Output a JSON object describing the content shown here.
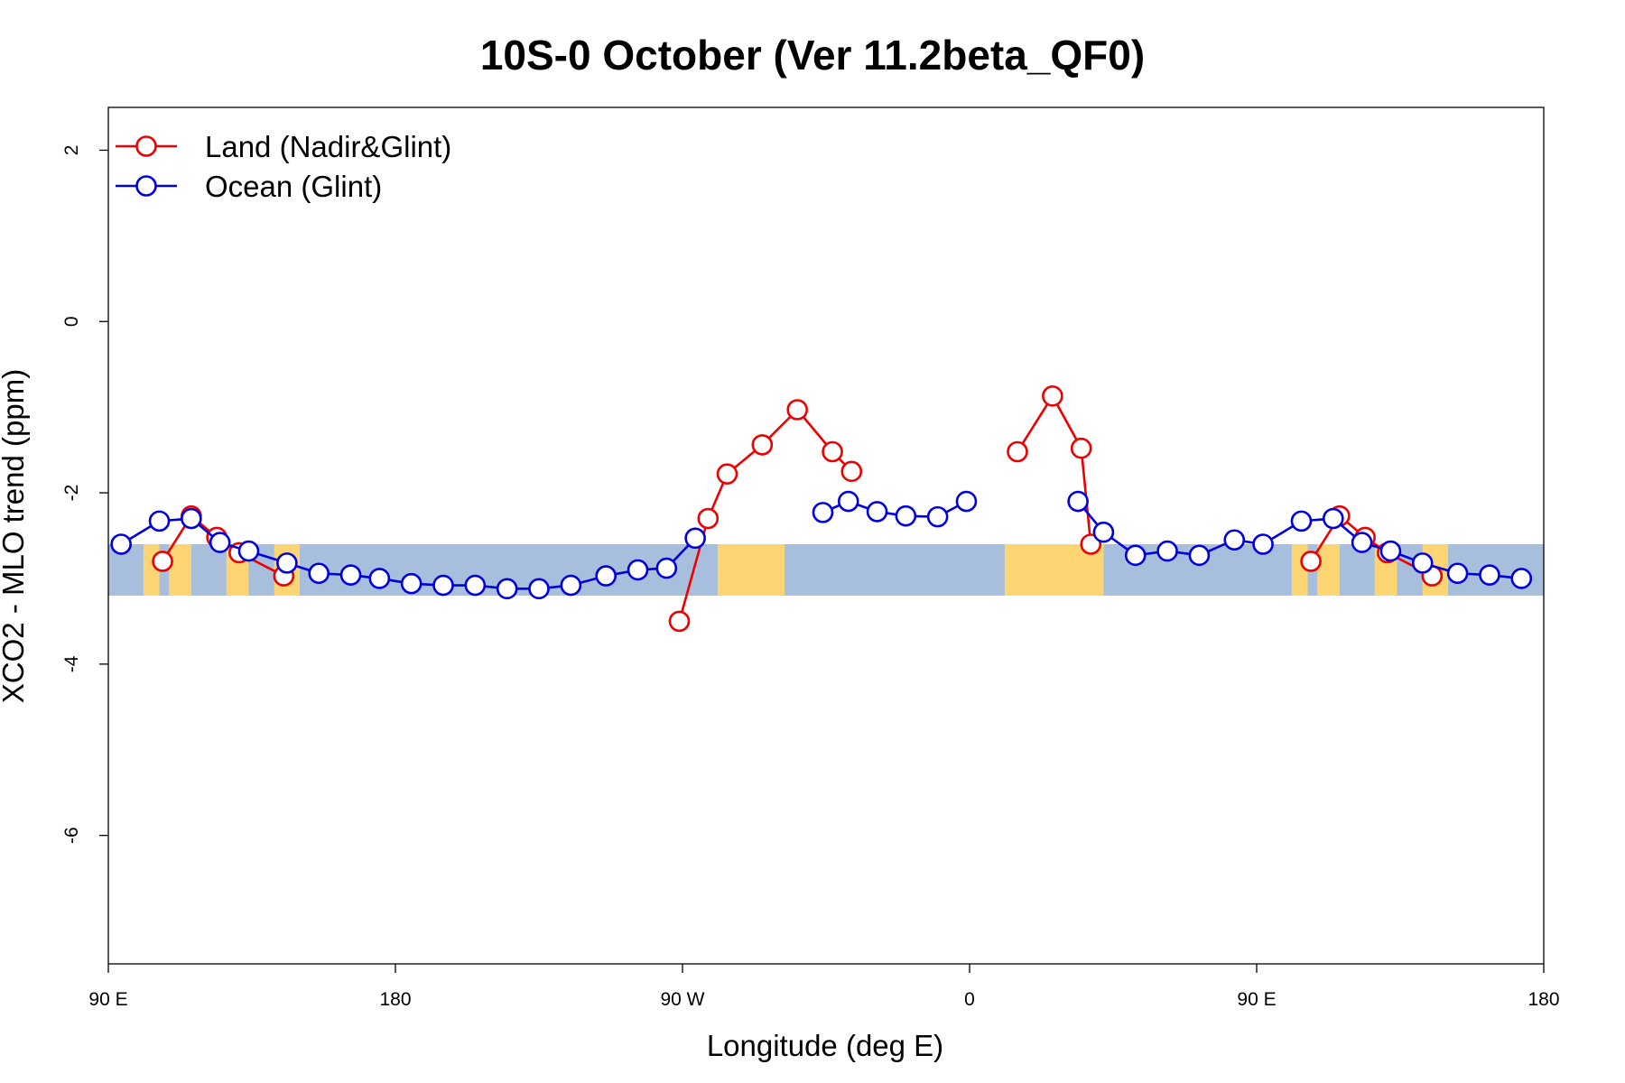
{
  "chart_data": {
    "type": "line",
    "title": "10S-0 October (Ver 11.2beta_QF0)",
    "xlabel": "Longitude (deg E)",
    "ylabel": "XCO2 - MLO trend (ppm)",
    "xlim": [
      90,
      540
    ],
    "ylim": [
      -7.5,
      2.5
    ],
    "x_ticks": [
      {
        "value": 90,
        "label": "90 E"
      },
      {
        "value": 180,
        "label": "180"
      },
      {
        "value": 270,
        "label": "90 W"
      },
      {
        "value": 360,
        "label": "0"
      },
      {
        "value": 450,
        "label": "90 E"
      },
      {
        "value": 540,
        "label": "180"
      }
    ],
    "y_ticks": [
      {
        "value": 2,
        "label": "2"
      },
      {
        "value": 0,
        "label": "0"
      },
      {
        "value": -2,
        "label": "-2"
      },
      {
        "value": -4,
        "label": "-4"
      },
      {
        "value": -6,
        "label": "-6"
      }
    ],
    "legend": {
      "position": "top-left"
    },
    "map_band": {
      "y_range": [
        -3.2,
        -2.6
      ],
      "ocean_color": "#a8bedd",
      "land_color": "#fdd673",
      "land_spans": [
        [
          101,
          106
        ],
        [
          109,
          116
        ],
        [
          127,
          134
        ],
        [
          142,
          150
        ],
        [
          281,
          302
        ],
        [
          371,
          402
        ],
        [
          461,
          466
        ],
        [
          469,
          476
        ],
        [
          487,
          494
        ],
        [
          502,
          510
        ]
      ]
    },
    "series": [
      {
        "name": "Land (Nadir&Glint)",
        "color": "#ee0000",
        "segments": [
          {
            "x": [
              107,
              116,
              124,
              131,
              145
            ],
            "y": [
              -2.8,
              -2.27,
              -2.52,
              -2.7,
              -2.97
            ]
          },
          {
            "x": [
              269,
              278,
              284,
              295,
              306,
              317,
              323
            ],
            "y": [
              -3.5,
              -2.3,
              -1.78,
              -1.44,
              -1.03,
              -1.52,
              -1.75
            ]
          },
          {
            "x": [
              375,
              386,
              395,
              398
            ],
            "y": [
              -1.52,
              -0.87,
              -1.48,
              -2.6
            ]
          },
          {
            "x": [
              467,
              476,
              484,
              491,
              505
            ],
            "y": [
              -2.8,
              -2.27,
              -2.52,
              -2.7,
              -2.97
            ]
          }
        ]
      },
      {
        "name": "Ocean (Glint)",
        "color": "#0000dd",
        "segments": [
          {
            "x": [
              94,
              106,
              116,
              125,
              134,
              146,
              156,
              166,
              175,
              185,
              195,
              205,
              215,
              225,
              235,
              246,
              256,
              265,
              274
            ],
            "y": [
              -2.6,
              -2.33,
              -2.3,
              -2.58,
              -2.68,
              -2.82,
              -2.94,
              -2.96,
              -3.0,
              -3.06,
              -3.08,
              -3.08,
              -3.12,
              -3.12,
              -3.08,
              -2.97,
              -2.9,
              -2.88,
              -2.53
            ]
          },
          {
            "x": [
              314,
              322,
              331,
              340,
              350,
              359
            ],
            "y": [
              -2.23,
              -2.1,
              -2.22,
              -2.27,
              -2.28,
              -2.1
            ]
          },
          {
            "x": [
              394,
              402,
              412,
              422,
              432,
              443,
              452,
              464,
              474,
              483,
              492,
              502,
              513,
              523,
              533
            ],
            "y": [
              -2.1,
              -2.46,
              -2.73,
              -2.68,
              -2.73,
              -2.55,
              -2.6,
              -2.33,
              -2.3,
              -2.58,
              -2.68,
              -2.82,
              -2.94,
              -2.96,
              -3.0
            ]
          }
        ]
      }
    ]
  }
}
